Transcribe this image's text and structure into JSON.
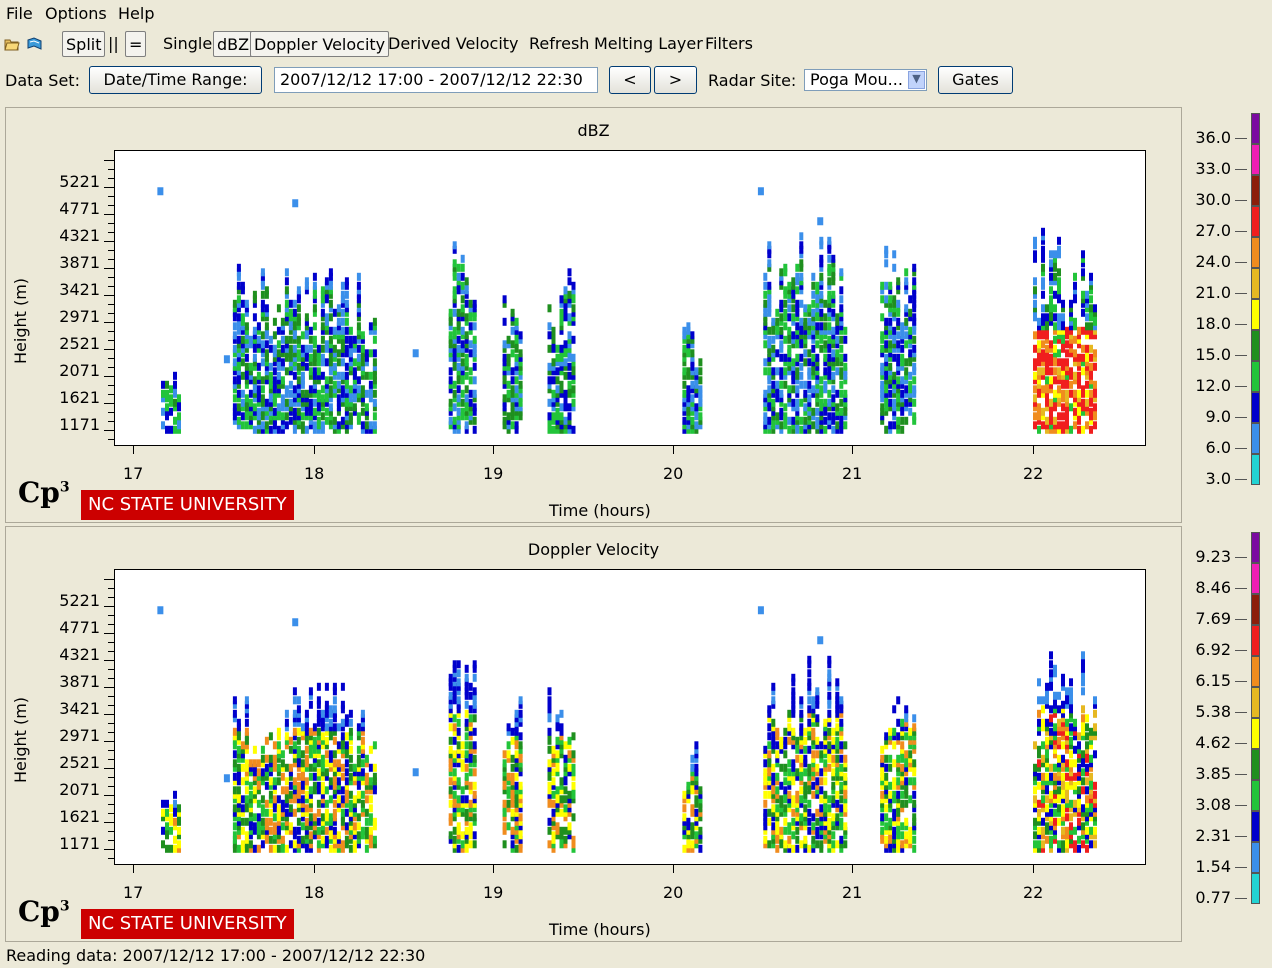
{
  "menu": [
    "File",
    "Options",
    "Help"
  ],
  "toolbar": {
    "open_icon": "open-folder-icon",
    "book_icon": "book-icon",
    "split": "Split",
    "parallel": "||",
    "equal": "=",
    "single": "Single",
    "dbz": "dBZ",
    "doppler": "Doppler Velocity",
    "derived": "Derived Velocity",
    "refresh": "Refresh",
    "melting": "Melting Layer",
    "filters": "Filters"
  },
  "dataset": {
    "label": "Data Set:",
    "datetime_button": "Date/Time Range:",
    "range_value": "2007/12/12 17:00 - 2007/12/12 22:30",
    "prev": "<",
    "next": ">",
    "radar_label": "Radar Site:",
    "radar_value": "Poga Mou...",
    "gates": "Gates"
  },
  "panels": [
    {
      "title": "dBZ",
      "ylabel": "Height (m)",
      "xlabel": "Time (hours)",
      "yticks": [
        "5221",
        "4771",
        "4321",
        "3871",
        "3421",
        "2971",
        "2521",
        "2071",
        "1621",
        "1171"
      ],
      "xticks": [
        "17",
        "18",
        "19",
        "20",
        "21",
        "22"
      ],
      "colorbar_labels": [
        "36.0",
        "33.0",
        "30.0",
        "27.0",
        "24.0",
        "21.0",
        "18.0",
        "15.0",
        "12.0",
        "9.0",
        "6.0",
        "3.0"
      ],
      "logo_text": "Cp",
      "logo_sup": "3",
      "university": "NC STATE UNIVERSITY"
    },
    {
      "title": "Doppler Velocity",
      "ylabel": "Height (m)",
      "xlabel": "Time (hours)",
      "yticks": [
        "5221",
        "4771",
        "4321",
        "3871",
        "3421",
        "2971",
        "2521",
        "2071",
        "1621",
        "1171"
      ],
      "xticks": [
        "17",
        "18",
        "19",
        "20",
        "21",
        "22"
      ],
      "colorbar_labels": [
        "9.23",
        "8.46",
        "7.69",
        "6.92",
        "6.15",
        "5.38",
        "4.62",
        "3.85",
        "3.08",
        "2.31",
        "1.54",
        "0.77"
      ],
      "logo_text": "Cp",
      "logo_sup": "3",
      "university": "NC STATE UNIVERSITY"
    }
  ],
  "colorbar_colors": [
    "#22d3d3",
    "#3b8fea",
    "#0000cc",
    "#22c43a",
    "#1f8f1f",
    "#ffff00",
    "#e6b822",
    "#f08c1e",
    "#f01e1e",
    "#8c1e0a",
    "#f01eb4",
    "#7a0aa0"
  ],
  "status": "Reading data: 2007/12/12 17:00 - 2007/12/12 22:30",
  "chart_data": [
    {
      "type": "heatmap",
      "title": "dBZ",
      "xlabel": "Time (hours)",
      "ylabel": "Height (m)",
      "xlim": [
        16.9,
        22.4
      ],
      "ylim": [
        1000,
        5500
      ],
      "colorbar_range": [
        0,
        39
      ],
      "clusters": [
        {
          "t0": 17.15,
          "t1": 17.25,
          "h0": 1100,
          "h1": 2100,
          "level": "blue"
        },
        {
          "t0": 17.55,
          "t1": 18.35,
          "h0": 1100,
          "h1": 3900,
          "level": "green"
        },
        {
          "t0": 18.75,
          "t1": 18.9,
          "h0": 1100,
          "h1": 4400,
          "level": "green"
        },
        {
          "t0": 19.05,
          "t1": 19.15,
          "h0": 1100,
          "h1": 3800,
          "level": "green"
        },
        {
          "t0": 19.3,
          "t1": 19.45,
          "h0": 1100,
          "h1": 3800,
          "level": "green"
        },
        {
          "t0": 20.05,
          "t1": 20.15,
          "h0": 1100,
          "h1": 3000,
          "level": "blue"
        },
        {
          "t0": 20.5,
          "t1": 20.95,
          "h0": 1100,
          "h1": 4400,
          "level": "green"
        },
        {
          "t0": 21.15,
          "t1": 21.35,
          "h0": 1100,
          "h1": 4200,
          "level": "green"
        },
        {
          "t0": 22.0,
          "t1": 22.35,
          "h0": 1100,
          "h1": 4500,
          "level": "red"
        }
      ]
    },
    {
      "type": "heatmap",
      "title": "Doppler Velocity",
      "xlabel": "Time (hours)",
      "ylabel": "Height (m)",
      "xlim": [
        16.9,
        22.4
      ],
      "ylim": [
        1000,
        5500
      ],
      "colorbar_range": [
        0,
        10
      ]
    }
  ]
}
